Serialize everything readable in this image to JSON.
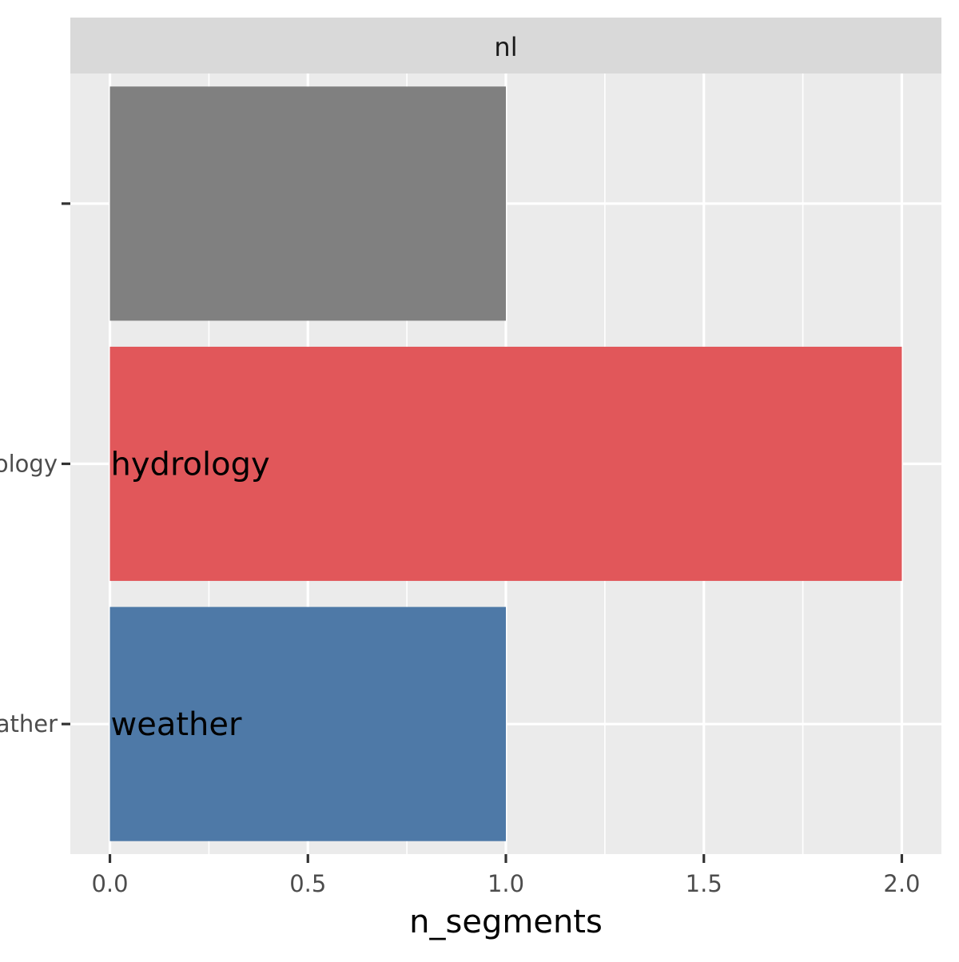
{
  "chart_data": {
    "type": "bar",
    "orientation": "horizontal",
    "facet_label": "nl",
    "xlabel": "n_segments",
    "ylabel": "",
    "xlim": [
      -0.1,
      2.1
    ],
    "x_ticks": [
      0.0,
      0.5,
      1.0,
      1.5,
      2.0
    ],
    "x_tick_labels": [
      "0.0",
      "0.5",
      "1.0",
      "1.5",
      "2.0"
    ],
    "grid": true,
    "legend": "none",
    "categories": [
      "",
      "hydrology",
      "weather"
    ],
    "values": [
      1,
      2,
      1
    ],
    "bar_labels": [
      "",
      "hydrology",
      "weather"
    ],
    "colors": [
      "#808080",
      "#E1575A",
      "#4E79A7"
    ],
    "panel_background": "#EBEBEB",
    "strip_background": "#D9D9D9",
    "grid_color": "#FFFFFF"
  }
}
